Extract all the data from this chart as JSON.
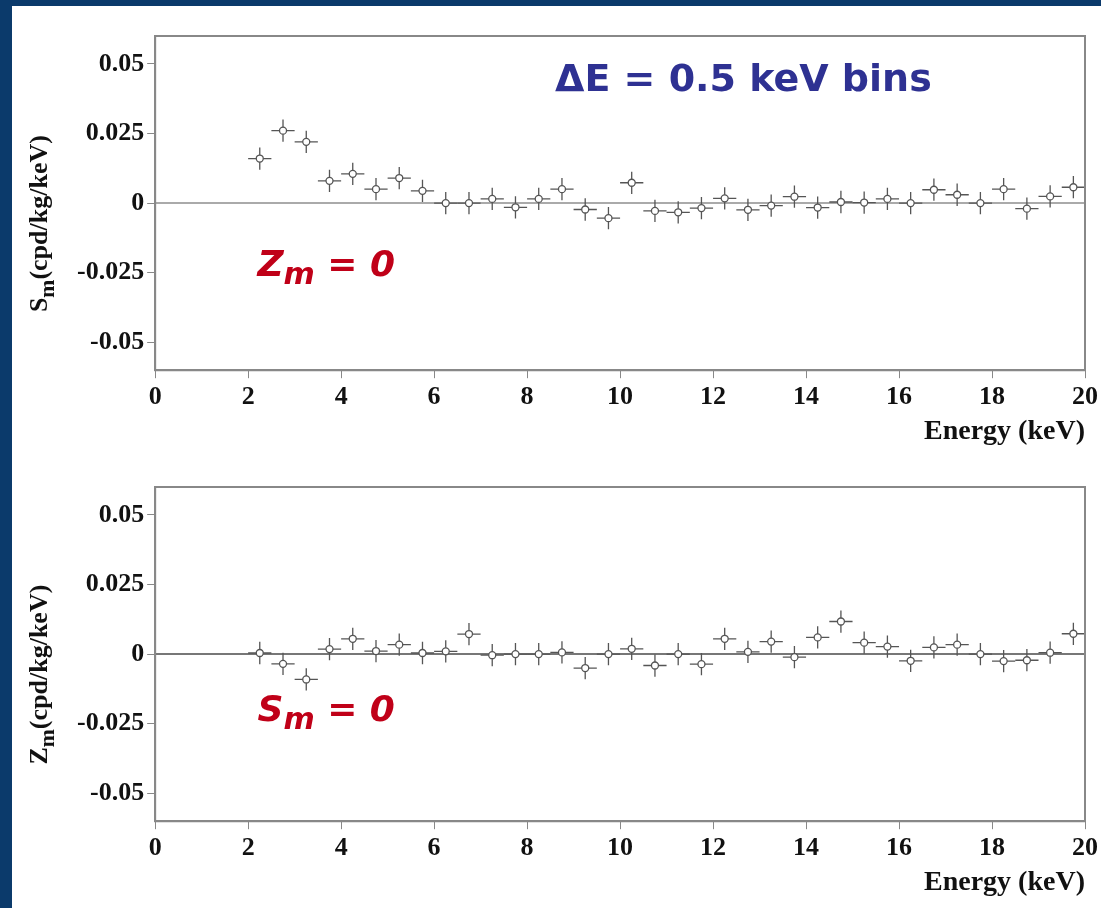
{
  "chart_data": [
    {
      "type": "scatter",
      "ylabel": "S$_{m}$(cpd/kg/keV)",
      "xlabel": "Energy (keV)",
      "annotations": [
        "ΔE = 0.5 keV bins",
        "Z$_{m}$ = 0"
      ],
      "color": "#555555",
      "marker": "circle",
      "grid": false,
      "xlim": [
        0,
        20
      ],
      "xticks": [
        0,
        2,
        4,
        6,
        8,
        10,
        12,
        14,
        16,
        18,
        20
      ],
      "ylim": [
        -0.06,
        0.06
      ],
      "yticks": [
        -0.05,
        -0.025,
        0,
        0.025,
        0.05
      ],
      "ref_lines": [
        {
          "axis": "y",
          "value": 0,
          "color": "#aaaaaa"
        }
      ],
      "x": [
        2.25,
        2.75,
        3.25,
        3.75,
        4.25,
        4.75,
        5.25,
        5.75,
        6.25,
        6.75,
        7.25,
        7.75,
        8.25,
        8.75,
        9.25,
        9.75,
        10.25,
        10.75,
        11.25,
        11.75,
        12.25,
        12.75,
        13.25,
        13.75,
        14.25,
        14.75,
        15.25,
        15.75,
        16.25,
        16.75,
        17.25,
        17.75,
        18.25,
        18.75,
        19.25,
        19.75
      ],
      "values": [
        0.016,
        0.026,
        0.022,
        0.008,
        0.0105,
        0.005,
        0.009,
        0.0044,
        0,
        0,
        0.0015,
        -0.0015,
        0.0015,
        0.005,
        -0.0023,
        -0.0054,
        0.0073,
        -0.0028,
        -0.0033,
        -0.0018,
        0.0017,
        -0.0024,
        -0.0009,
        0.0023,
        -0.0016,
        0.0004,
        0.0002,
        0.0015,
        0,
        0.0048,
        0.003,
        0,
        0.005,
        -0.002,
        0.0024,
        0.0057
      ],
      "errors": [
        0.004,
        0.004,
        0.004,
        0.004,
        0.004,
        0.004,
        0.004,
        0.004,
        0.004,
        0.004,
        0.004,
        0.004,
        0.004,
        0.004,
        0.004,
        0.004,
        0.004,
        0.004,
        0.004,
        0.004,
        0.004,
        0.004,
        0.004,
        0.004,
        0.004,
        0.004,
        0.004,
        0.004,
        0.004,
        0.004,
        0.004,
        0.004,
        0.004,
        0.004,
        0.004,
        0.004
      ],
      "xerrors": [
        0.25,
        0.25,
        0.25,
        0.25,
        0.25,
        0.25,
        0.25,
        0.25,
        0.25,
        0.25,
        0.25,
        0.25,
        0.25,
        0.25,
        0.25,
        0.25,
        0.25,
        0.25,
        0.25,
        0.25,
        0.25,
        0.25,
        0.25,
        0.25,
        0.25,
        0.25,
        0.25,
        0.25,
        0.25,
        0.25,
        0.25,
        0.25,
        0.25,
        0.25,
        0.25,
        0.25
      ]
    },
    {
      "type": "scatter",
      "ylabel": "Z$_{m}$(cpd/kg/keV)",
      "xlabel": "Energy (keV)",
      "annotations": [
        "S$_{m}$ = 0"
      ],
      "color": "#555555",
      "marker": "circle",
      "grid": false,
      "xlim": [
        0,
        20
      ],
      "xticks": [
        0,
        2,
        4,
        6,
        8,
        10,
        12,
        14,
        16,
        18,
        20
      ],
      "ylim": [
        -0.06,
        0.06
      ],
      "yticks": [
        -0.05,
        -0.025,
        0,
        0.025,
        0.05
      ],
      "ref_lines": [
        {
          "axis": "y",
          "value": 0,
          "color": "#777777"
        }
      ],
      "x": [
        2.25,
        2.75,
        3.25,
        3.75,
        4.25,
        4.75,
        5.25,
        5.75,
        6.25,
        6.75,
        7.25,
        7.75,
        8.25,
        8.75,
        9.25,
        9.75,
        10.25,
        10.75,
        11.25,
        11.75,
        12.25,
        12.75,
        13.25,
        13.75,
        14.25,
        14.75,
        15.25,
        15.75,
        16.25,
        16.75,
        17.25,
        17.75,
        18.25,
        18.75,
        19.25,
        19.75
      ],
      "values": [
        0.0004,
        -0.0035,
        -0.0091,
        0.0018,
        0.0055,
        0.0011,
        0.0034,
        0.0004,
        0.001,
        0.0072,
        -0.0004,
        0,
        0,
        0.0006,
        -0.005,
        0,
        0.0019,
        -0.0041,
        0,
        -0.0036,
        0.0055,
        0.0008,
        0.0045,
        -0.0011,
        0.006,
        0.0117,
        0.0041,
        0.0027,
        -0.0024,
        0.0024,
        0.0034,
        0,
        -0.0025,
        -0.0022,
        0.0005,
        0.0073
      ],
      "errors": [
        0.004,
        0.004,
        0.004,
        0.004,
        0.004,
        0.004,
        0.004,
        0.004,
        0.004,
        0.004,
        0.004,
        0.004,
        0.004,
        0.004,
        0.004,
        0.004,
        0.004,
        0.004,
        0.004,
        0.004,
        0.004,
        0.004,
        0.004,
        0.004,
        0.004,
        0.004,
        0.004,
        0.004,
        0.004,
        0.004,
        0.004,
        0.004,
        0.004,
        0.004,
        0.004,
        0.004
      ],
      "xerrors": [
        0.25,
        0.25,
        0.25,
        0.25,
        0.25,
        0.25,
        0.25,
        0.25,
        0.25,
        0.25,
        0.25,
        0.25,
        0.25,
        0.25,
        0.25,
        0.25,
        0.25,
        0.25,
        0.25,
        0.25,
        0.25,
        0.25,
        0.25,
        0.25,
        0.25,
        0.25,
        0.25,
        0.25,
        0.25,
        0.25,
        0.25,
        0.25,
        0.25,
        0.25,
        0.25,
        0.25
      ]
    }
  ]
}
